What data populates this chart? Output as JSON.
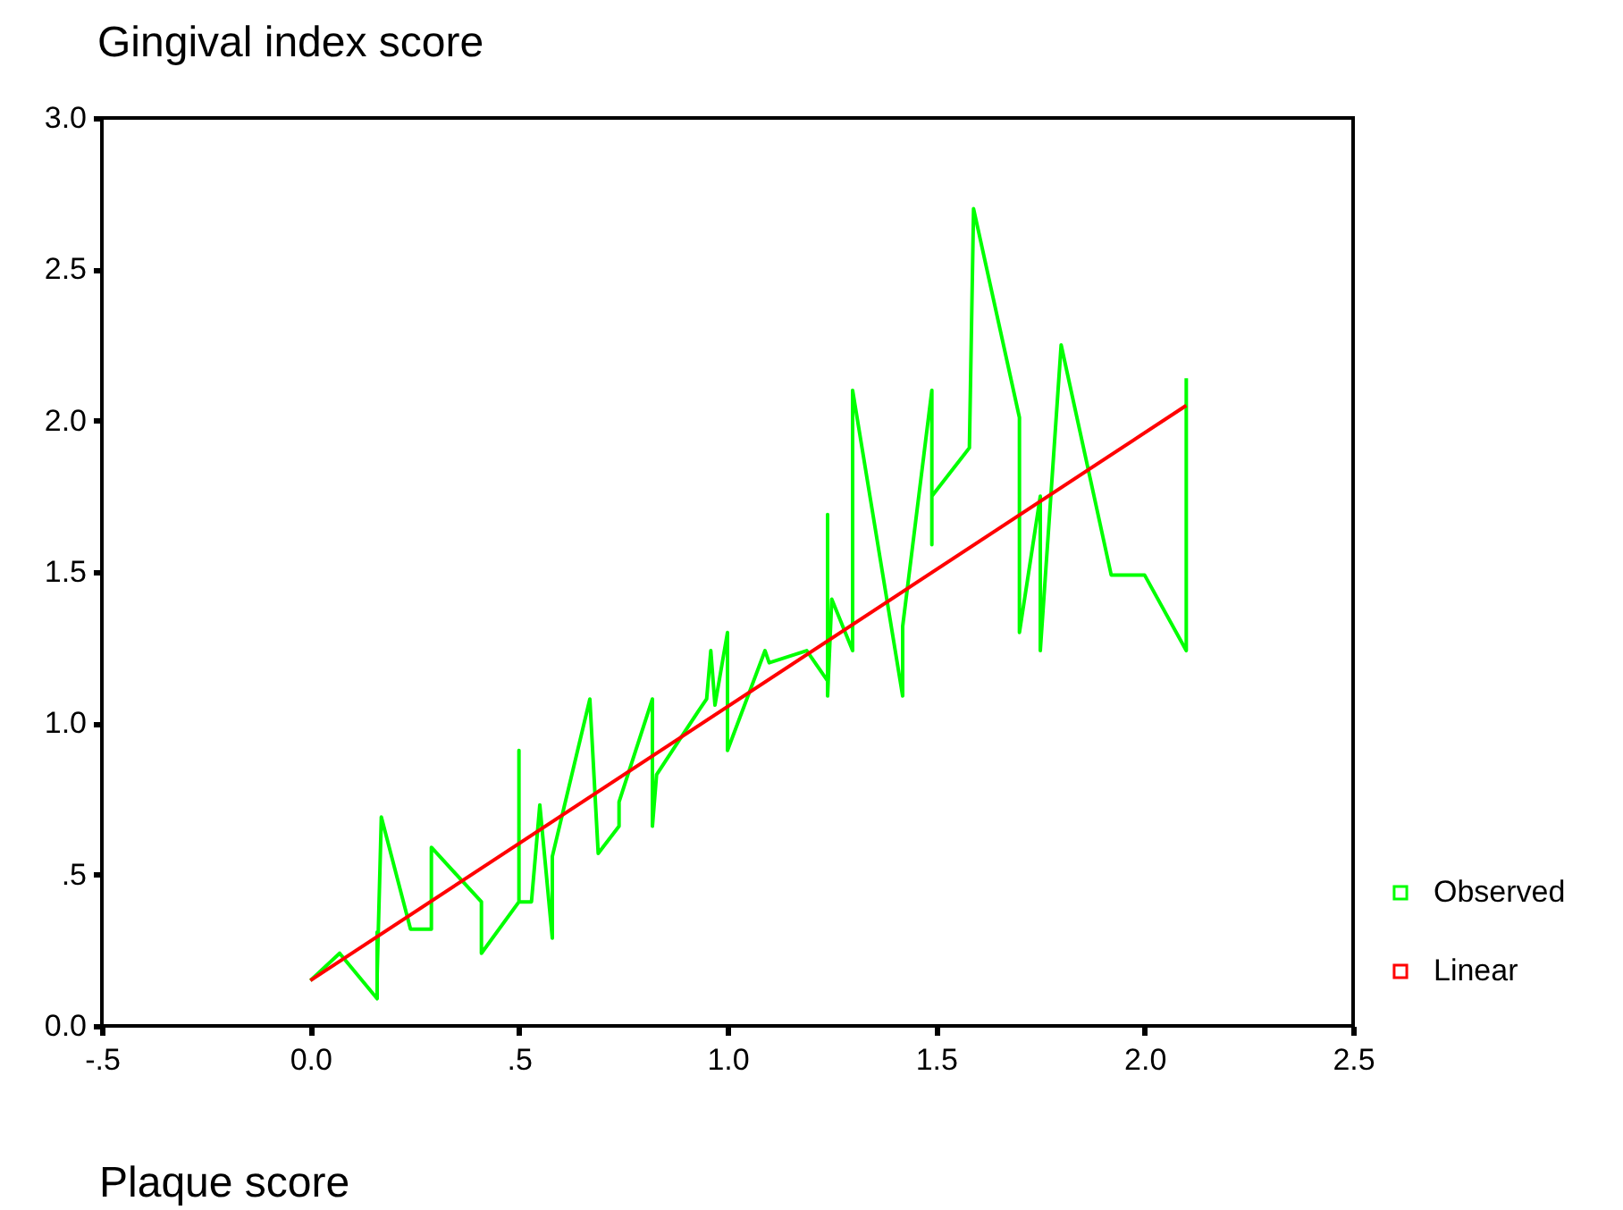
{
  "chart_data": {
    "type": "line",
    "xlabel": "Plaque score",
    "ylabel": "Gingival index score",
    "xlim": [
      -0.5,
      2.5
    ],
    "ylim": [
      0,
      3
    ],
    "xticks": [
      {
        "value": -0.5,
        "label": "-.5"
      },
      {
        "value": 0,
        "label": "0.0"
      },
      {
        "value": 0.5,
        "label": ".5"
      },
      {
        "value": 1,
        "label": "1.0"
      },
      {
        "value": 1.5,
        "label": "1.5"
      },
      {
        "value": 2,
        "label": "2.0"
      },
      {
        "value": 2.5,
        "label": "2.5"
      }
    ],
    "yticks": [
      {
        "value": 0,
        "label": "0.0"
      },
      {
        "value": 0.5,
        "label": ".5"
      },
      {
        "value": 1,
        "label": "1.0"
      },
      {
        "value": 1.5,
        "label": "1.5"
      },
      {
        "value": 2,
        "label": "2.0"
      },
      {
        "value": 2.5,
        "label": "2.5"
      },
      {
        "value": 3,
        "label": "3.0"
      }
    ],
    "legend": "right",
    "series": [
      {
        "name": "Observed",
        "color": "#00ff00",
        "x": [
          0.0,
          0.07,
          0.16,
          0.16,
          0.16,
          0.17,
          0.24,
          0.29,
          0.29,
          0.41,
          0.41,
          0.5,
          0.5,
          0.5,
          0.53,
          0.55,
          0.58,
          0.58,
          0.67,
          0.69,
          0.74,
          0.74,
          0.82,
          0.82,
          0.83,
          0.93,
          0.95,
          0.96,
          0.97,
          1.0,
          1.0,
          1.09,
          1.1,
          1.19,
          1.24,
          1.24,
          1.24,
          1.25,
          1.3,
          1.3,
          1.42,
          1.42,
          1.49,
          1.49,
          1.49,
          1.58,
          1.59,
          1.7,
          1.7,
          1.75,
          1.75,
          1.8,
          1.92,
          2.0,
          2.1,
          2.1
        ],
        "values": [
          0.15,
          0.24,
          0.09,
          0.31,
          0.17,
          0.69,
          0.32,
          0.32,
          0.59,
          0.41,
          0.24,
          0.41,
          0.91,
          0.41,
          0.41,
          0.73,
          0.29,
          0.56,
          1.08,
          0.57,
          0.66,
          0.74,
          1.08,
          0.66,
          0.83,
          1.04,
          1.08,
          1.24,
          1.06,
          1.3,
          0.91,
          1.24,
          1.2,
          1.24,
          1.14,
          1.69,
          1.09,
          1.41,
          1.24,
          2.1,
          1.09,
          1.32,
          2.1,
          1.59,
          1.75,
          1.91,
          2.7,
          2.01,
          1.3,
          1.75,
          1.24,
          2.25,
          1.49,
          1.49,
          1.24,
          2.14
        ]
      },
      {
        "name": "Linear",
        "color": "#ff0000",
        "x": [
          0.0,
          2.1
        ],
        "values": [
          0.15,
          2.05
        ]
      }
    ]
  }
}
